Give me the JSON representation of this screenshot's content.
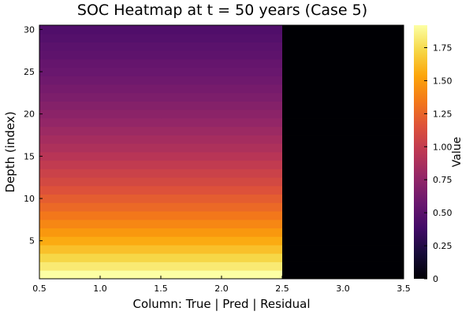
{
  "chart_data": {
    "type": "heatmap",
    "title": "SOC Heatmap at t = 50 years (Case 5)",
    "xlabel": "Column: True | Pred | Residual",
    "ylabel": "Depth (index)",
    "colorbar_label": "Value",
    "xlim": [
      0.5,
      3.5
    ],
    "ylim": [
      0.5,
      30.5
    ],
    "x_ticks": [
      "0.5",
      "1.0",
      "1.5",
      "2.0",
      "2.5",
      "3.0",
      "3.5"
    ],
    "y_ticks": [
      "5",
      "10",
      "15",
      "20",
      "25",
      "30"
    ],
    "colorbar_ticks": [
      "0",
      "0.25",
      "0.50",
      "0.75",
      "1.00",
      "1.25",
      "1.50",
      "1.75"
    ],
    "colorbar_range": [
      0,
      1.92
    ],
    "colormap": "inferno",
    "columns": [
      {
        "column": "True",
        "x": 1
      },
      {
        "column": "Pred",
        "x": 2
      },
      {
        "column": "Residual",
        "x": 3
      }
    ],
    "depth_index": [
      1,
      2,
      3,
      4,
      5,
      6,
      7,
      8,
      9,
      10,
      11,
      12,
      13,
      14,
      15,
      16,
      17,
      18,
      19,
      20,
      21,
      22,
      23,
      24,
      25,
      26,
      27,
      28,
      29,
      30
    ],
    "true_values": [
      1.92,
      1.82,
      1.73,
      1.64,
      1.56,
      1.48,
      1.41,
      1.34,
      1.27,
      1.21,
      1.15,
      1.09,
      1.04,
      0.99,
      0.94,
      0.89,
      0.85,
      0.81,
      0.77,
      0.73,
      0.7,
      0.66,
      0.63,
      0.6,
      0.57,
      0.55,
      0.52,
      0.5,
      0.47,
      0.45
    ],
    "pred_values": [
      1.92,
      1.82,
      1.73,
      1.64,
      1.56,
      1.48,
      1.41,
      1.34,
      1.27,
      1.21,
      1.15,
      1.09,
      1.04,
      0.99,
      0.94,
      0.89,
      0.85,
      0.81,
      0.77,
      0.73,
      0.7,
      0.66,
      0.63,
      0.6,
      0.57,
      0.55,
      0.52,
      0.5,
      0.47,
      0.45
    ],
    "residual_values": [
      0,
      0,
      0,
      0,
      0,
      0,
      0,
      0,
      0,
      0,
      0,
      0,
      0,
      0,
      0,
      0,
      0,
      0,
      0,
      0,
      0,
      0,
      0,
      0,
      0,
      0,
      0,
      0,
      0,
      0
    ],
    "grid": false,
    "legend": "colorbar-right"
  }
}
